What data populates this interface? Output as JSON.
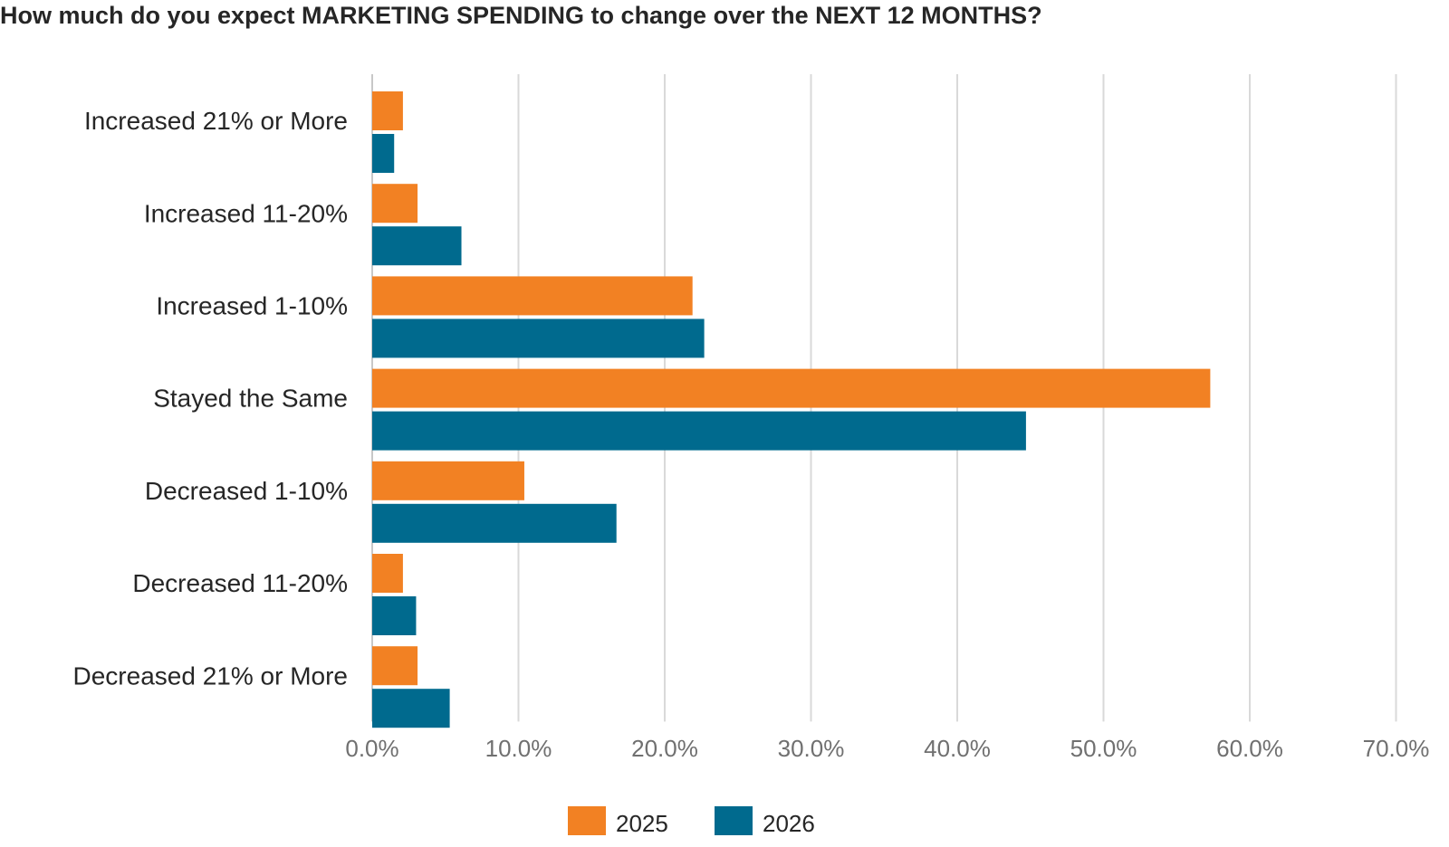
{
  "chart_data": {
    "type": "bar",
    "orientation": "horizontal",
    "title": "How much do you expect MARKETING SPENDING to change over the NEXT 12 MONTHS?",
    "categories": [
      "Increased 21% or More",
      "Increased 11-20%",
      "Increased 1-10%",
      "Stayed the Same",
      "Decreased 1-10%",
      "Decreased 11-20%",
      "Decreased 21% or More"
    ],
    "series": [
      {
        "name": "2025",
        "color": "#f28123",
        "values": [
          2.1,
          3.1,
          21.9,
          57.3,
          10.4,
          2.1,
          3.1
        ]
      },
      {
        "name": "2026",
        "color": "#006a8e",
        "values": [
          1.5,
          6.1,
          22.7,
          44.7,
          16.7,
          3.0,
          5.3
        ]
      }
    ],
    "xlim": [
      0,
      70
    ],
    "xticks": [
      "0.0%",
      "10.0%",
      "20.0%",
      "30.0%",
      "40.0%",
      "50.0%",
      "60.0%",
      "70.0%"
    ],
    "xlabel": "",
    "ylabel": "",
    "grid": "vertical",
    "legend": "bottom-center"
  }
}
